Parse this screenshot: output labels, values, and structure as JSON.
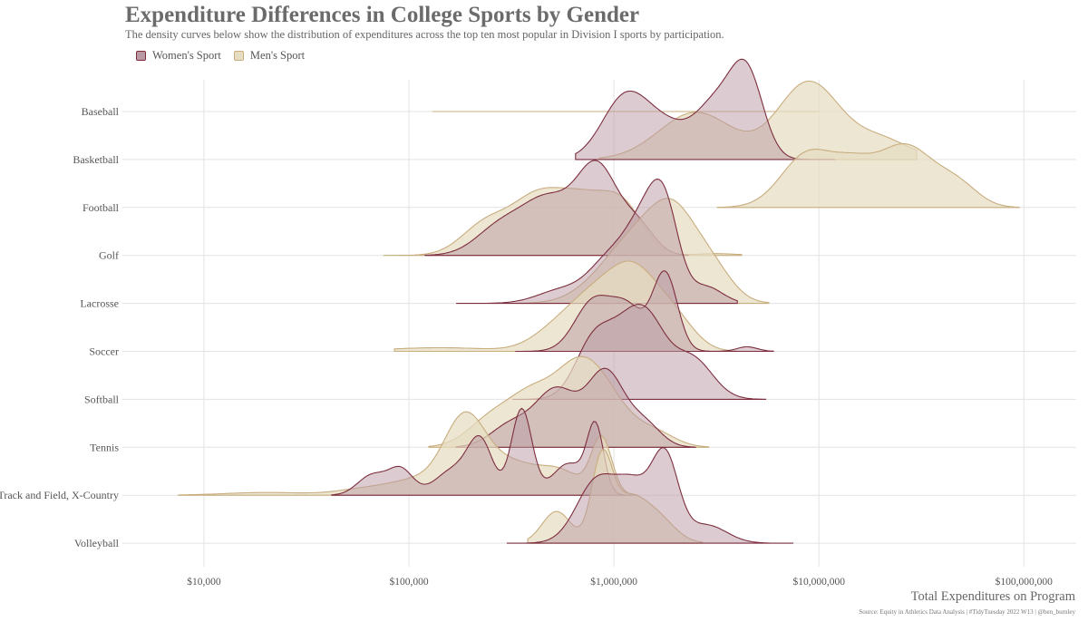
{
  "title": "Expenditure Differences in College Sports by Gender",
  "subtitle": "The density curves below show the distribution of expenditures across the top ten most popular in Division I sports by participation.",
  "legend": {
    "women_label": "Women's Sport",
    "men_label": "Men's Sport"
  },
  "x_axis_title": "Total Expenditures on Program",
  "caption": "Source: Equity in Athletics Data Analysis | #TidyTuesday 2022 W13 | @ben_burnley",
  "colors": {
    "women_fill": "#b99aa4",
    "women_line": "#7d2e3e",
    "men_fill": "#e6dcc2",
    "men_line": "#c8ad7e",
    "grid": "#e3e3e3"
  },
  "chart_data": {
    "type": "ridgeline-density",
    "x_scale": "log10",
    "xlim": [
      4000,
      180000000
    ],
    "x_ticks": [
      10000,
      100000,
      1000000,
      10000000,
      100000000
    ],
    "x_tick_labels": [
      "$10,000",
      "$100,000",
      "$1,000,000",
      "$10,000,000",
      "$100,000,000"
    ],
    "xlabel": "Total Expenditures on Program",
    "legend_position": "top-left",
    "grid": true,
    "categories": [
      "Baseball",
      "Basketball",
      "Football",
      "Golf",
      "Lacrosse",
      "Soccer",
      "Softball",
      "Tennis",
      "Track and Field, X-Country",
      "Volleyball"
    ],
    "series": [
      {
        "name": "Men's Sport",
        "ridges": [
          {
            "category": "Baseball",
            "range": [
              130000,
              10000000
            ],
            "peaks": [
              [
                0.55,
                1.35,
                0.21
              ],
              [
                0.68,
                1.85,
                0.12
              ],
              [
                0.95,
                2.3,
                0.25
              ],
              [
                0.55,
                2.8,
                0.24
              ],
              [
                0.42,
                3.3,
                0.2
              ]
            ]
          },
          {
            "category": "Basketball",
            "range": [
              850000,
              30000000
            ],
            "peaks": [
              [
                0.52,
                6.4,
                0.18
              ],
              [
                0.85,
                6.95,
                0.15
              ],
              [
                0.22,
                7.3,
                0.14
              ]
            ]
          },
          {
            "category": "Football",
            "range": [
              3200000,
              95000000
            ],
            "peaks": [
              [
                0.6,
                6.95,
                0.13
              ],
              [
                0.32,
                7.17,
                0.1
              ],
              [
                0.68,
                7.42,
                0.14
              ],
              [
                0.22,
                7.68,
                0.1
              ]
            ]
          },
          {
            "category": "Golf",
            "range": [
              75000,
              4200000
            ],
            "peaks": [
              [
                0.35,
                5.38,
                0.12
              ],
              [
                0.55,
                5.62,
                0.12
              ],
              [
                0.58,
                5.85,
                0.13
              ],
              [
                0.45,
                6.05,
                0.1
              ],
              [
                0.02,
                6.5,
                0.1
              ]
            ]
          },
          {
            "category": "Lacrosse",
            "range": [
              350000,
              5700000
            ],
            "peaks": [
              [
                0.28,
                5.98,
                0.14
              ],
              [
                0.55,
                6.14,
                0.13
              ],
              [
                0.78,
                6.3,
                0.11
              ],
              [
                0.35,
                6.48,
                0.1
              ]
            ]
          },
          {
            "category": "Soccer",
            "range": [
              85000,
              4000000
            ],
            "peaks": [
              [
                0.04,
                5.15,
                0.25
              ],
              [
                0.22,
                5.72,
                0.12
              ],
              [
                0.48,
                5.9,
                0.12
              ],
              [
                0.82,
                6.1,
                0.12
              ],
              [
                0.3,
                6.3,
                0.1
              ]
            ]
          },
          {
            "category": "Tennis",
            "range": [
              125000,
              2900000
            ],
            "peaks": [
              [
                0.35,
                5.42,
                0.12
              ],
              [
                0.42,
                5.6,
                0.1
              ],
              [
                0.48,
                5.78,
                0.11
              ],
              [
                0.68,
                5.92,
                0.13
              ],
              [
                0.15,
                6.2,
                0.1
              ]
            ]
          },
          {
            "category": "Track and Field, X-Country",
            "range": [
              7500,
              1300000
            ],
            "peaks": [
              [
                0.03,
                4.3,
                0.2
              ],
              [
                0.08,
                4.82,
                0.15
              ],
              [
                0.14,
                5.05,
                0.12
              ],
              [
                0.8,
                5.27,
                0.1
              ],
              [
                0.35,
                5.5,
                0.14
              ],
              [
                0.22,
                5.75,
                0.1
              ],
              [
                0.62,
                5.94,
                0.05
              ]
            ]
          },
          {
            "category": "Volleyball",
            "range": [
              380000,
              2700000
            ],
            "peaks": [
              [
                0.35,
                5.72,
                0.07
              ],
              [
                0.88,
                5.94,
                0.05
              ],
              [
                0.42,
                6.06,
                0.08
              ],
              [
                0.3,
                6.2,
                0.09
              ]
            ]
          }
        ]
      },
      {
        "name": "Women's Sport",
        "ridges": [
          {
            "category": "Basketball",
            "range": [
              650000,
              12000000
            ],
            "peaks": [
              [
                0.65,
                6.05,
                0.11
              ],
              [
                0.35,
                6.25,
                0.12
              ],
              [
                0.58,
                6.5,
                0.1
              ],
              [
                0.88,
                6.65,
                0.08
              ]
            ]
          },
          {
            "category": "Golf",
            "range": [
              120000,
              2300000
            ],
            "peaks": [
              [
                0.32,
                5.45,
                0.12
              ],
              [
                0.58,
                5.68,
                0.12
              ],
              [
                0.95,
                5.92,
                0.1
              ],
              [
                0.3,
                6.12,
                0.08
              ]
            ]
          },
          {
            "category": "Lacrosse",
            "range": [
              170000,
              4000000
            ],
            "peaks": [
              [
                0.15,
                5.75,
                0.12
              ],
              [
                0.45,
                5.98,
                0.1
              ],
              [
                0.8,
                6.15,
                0.09
              ],
              [
                0.82,
                6.25,
                0.07
              ],
              [
                0.18,
                6.45,
                0.08
              ]
            ]
          },
          {
            "category": "Soccer",
            "range": [
              330000,
              6000000
            ],
            "peaks": [
              [
                0.55,
                5.9,
                0.09
              ],
              [
                0.45,
                6.07,
                0.08
              ],
              [
                0.85,
                6.25,
                0.06
              ],
              [
                0.05,
                6.65,
                0.05
              ]
            ]
          },
          {
            "category": "Softball",
            "range": [
              320000,
              5500000
            ],
            "peaks": [
              [
                0.62,
                5.9,
                0.09
              ],
              [
                0.52,
                6.05,
                0.09
              ],
              [
                0.72,
                6.17,
                0.09
              ],
              [
                0.45,
                6.38,
                0.1
              ]
            ]
          },
          {
            "category": "Tennis",
            "range": [
              170000,
              2500000
            ],
            "peaks": [
              [
                0.25,
                5.5,
                0.1
              ],
              [
                0.62,
                5.72,
                0.1
              ],
              [
                0.82,
                5.96,
                0.09
              ],
              [
                0.25,
                6.15,
                0.08
              ]
            ]
          },
          {
            "category": "Track and Field, X-Country",
            "range": [
              42000,
              1300000
            ],
            "peaks": [
              [
                0.22,
                4.82,
                0.07
              ],
              [
                0.28,
                4.96,
                0.06
              ],
              [
                0.28,
                5.22,
                0.09
              ],
              [
                0.55,
                5.35,
                0.06
              ],
              [
                0.95,
                5.55,
                0.05
              ],
              [
                0.35,
                5.78,
                0.08
              ],
              [
                0.72,
                5.91,
                0.04
              ]
            ]
          },
          {
            "category": "Volleyball",
            "range": [
              300000,
              7500000
            ],
            "peaks": [
              [
                0.7,
                5.92,
                0.1
              ],
              [
                0.55,
                6.1,
                0.08
              ],
              [
                0.92,
                6.25,
                0.065
              ],
              [
                0.2,
                6.45,
                0.1
              ]
            ]
          }
        ]
      }
    ]
  }
}
